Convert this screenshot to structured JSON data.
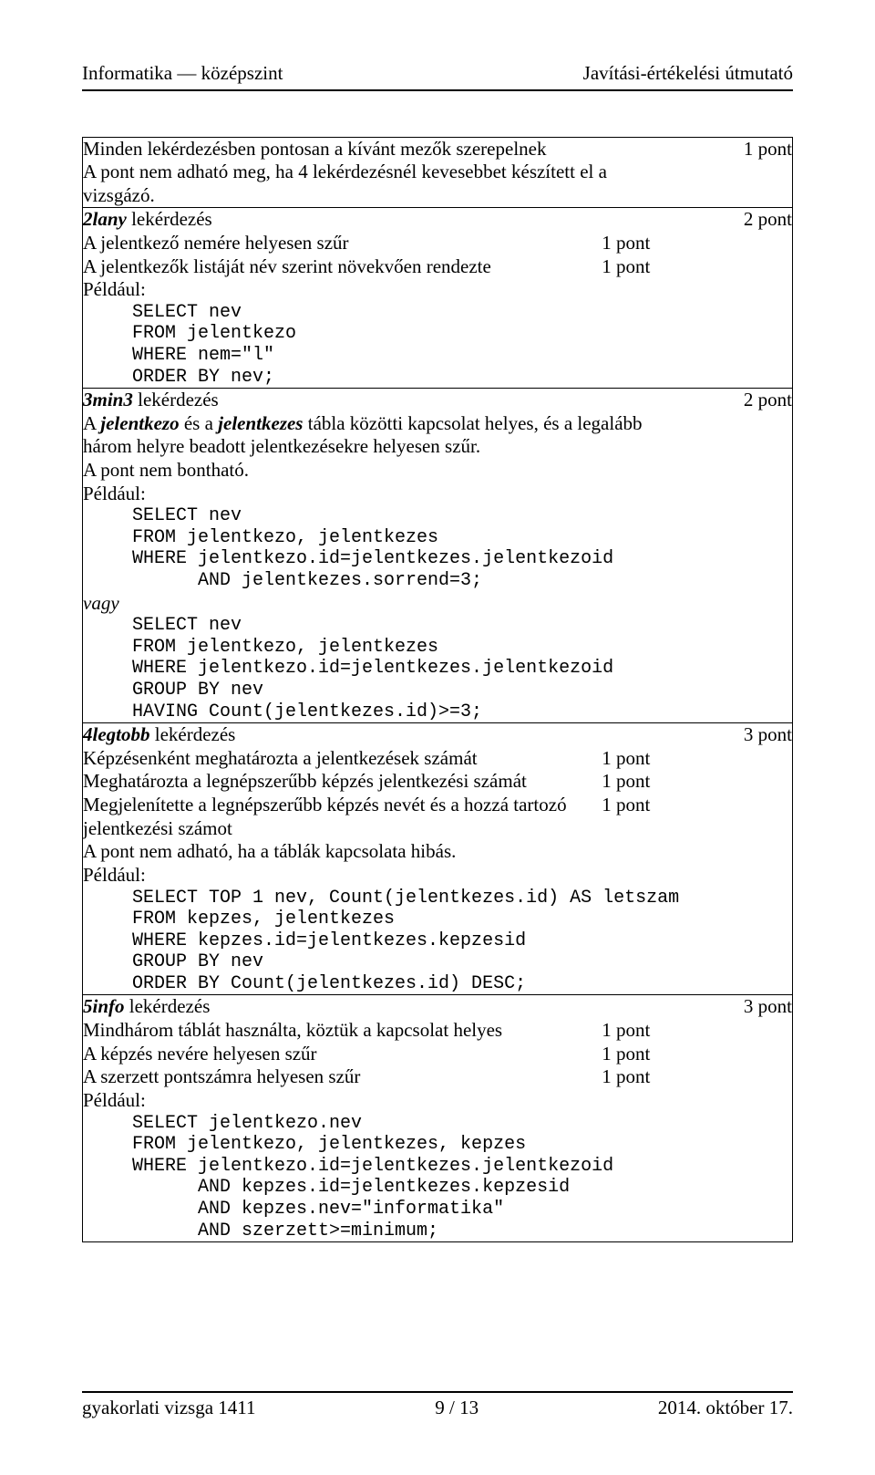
{
  "header": {
    "left": "Informatika — középszint",
    "right": "Javítási-értékelési útmutató"
  },
  "footer": {
    "left": "gyakorlati vizsga 1411",
    "center": "9 / 13",
    "right": "2014. október 17."
  },
  "points_label": "pont",
  "rows": {
    "r1": {
      "title": "Minden lekérdezésben pontosan a kívánt mezők szerepelnek",
      "pts": "1 pont",
      "cont": "A pont nem adható meg, ha 4 lekérdezésnél kevesebbet készített el a vizsgázó."
    },
    "r2": {
      "title_html": "2lany",
      "title_after": " lekérdezés",
      "pts": "2 pont",
      "sub1_text": "A jelentkező nemére helyesen szűr",
      "sub1_pts": "1 pont",
      "sub2_text": "A jelentkezők listáját név szerint növekvően rendezte",
      "sub2_pts": "1 pont",
      "example_label": "Például:",
      "code": "SELECT nev\nFROM jelentkezo\nWHERE nem=\"l\"\nORDER BY nev;"
    },
    "r3": {
      "title_html": "3min3",
      "title_after": " lekérdezés",
      "pts": "2 pont",
      "desc1": "A ",
      "desc_b1": "jelentkezo",
      "desc_mid": " és a ",
      "desc_b2": "jelentkezes",
      "desc2": " tábla közötti kapcsolat helyes, és a legalább három helyre beadott jelentkezésekre helyesen szűr.",
      "nosub": "A pont nem bontható.",
      "example_label": "Például:",
      "code1": "SELECT nev\nFROM jelentkezo, jelentkezes\nWHERE jelentkezo.id=jelentkezes.jelentkezoid\n      AND jelentkezes.sorrend=3;",
      "vagy": "vagy",
      "code2": "SELECT nev\nFROM jelentkezo, jelentkezes\nWHERE jelentkezo.id=jelentkezes.jelentkezoid\nGROUP BY nev\nHAVING Count(jelentkezes.id)>=3;"
    },
    "r4": {
      "title_html": "4legtobb",
      "title_after": " lekérdezés",
      "pts": "3 pont",
      "sub1_text": "Képzésenként meghatározta a jelentkezések számát",
      "sub1_pts": "1 pont",
      "sub2_text": "Meghatározta a legnépszerűbb képzés jelentkezési számát",
      "sub2_pts": "1 pont",
      "sub3_text": "Megjelenítette a legnépszerűbb képzés nevét és a hozzá tartozó jelentkezési számot",
      "sub3_pts": "1 pont",
      "note": "A pont nem adható, ha a táblák kapcsolata hibás.",
      "example_label": "Például:",
      "code": "SELECT TOP 1 nev, Count(jelentkezes.id) AS letszam\nFROM kepzes, jelentkezes\nWHERE kepzes.id=jelentkezes.kepzesid\nGROUP BY nev\nORDER BY Count(jelentkezes.id) DESC;"
    },
    "r5": {
      "title_html": "5info",
      "title_after": " lekérdezés",
      "pts": "3 pont",
      "sub1_text": "Mindhárom táblát használta, köztük a kapcsolat helyes",
      "sub1_pts": "1 pont",
      "sub2_text": "A képzés nevére helyesen szűr",
      "sub2_pts": "1 pont",
      "sub3_text": "A szerzett pontszámra helyesen szűr",
      "sub3_pts": "1 pont",
      "example_label": "Például:",
      "code": "SELECT jelentkezo.nev\nFROM jelentkezo, jelentkezes, kepzes\nWHERE jelentkezo.id=jelentkezes.jelentkezoid\n      AND kepzes.id=jelentkezes.kepzesid\n      AND kepzes.nev=\"informatika\"\n      AND szerzett>=minimum;"
    }
  }
}
